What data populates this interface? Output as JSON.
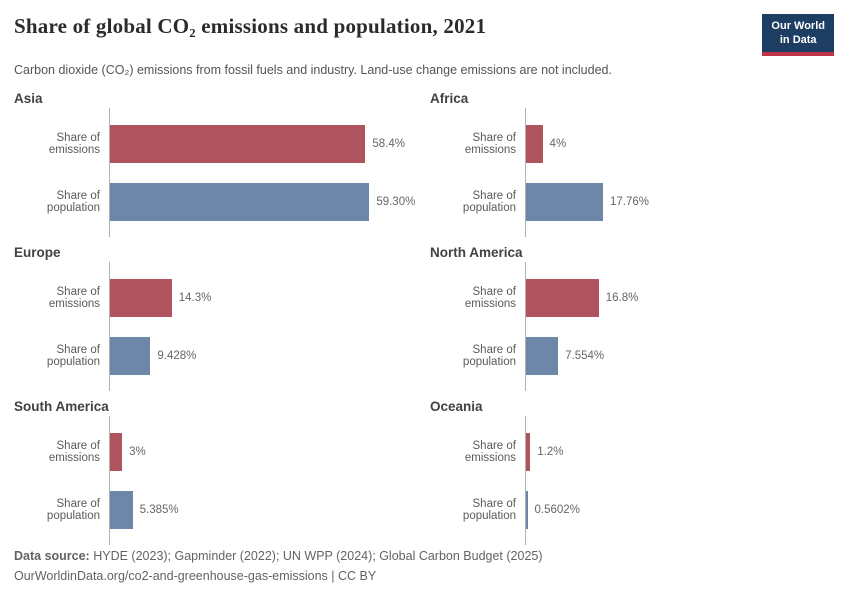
{
  "header": {
    "title": "Share of global CO₂ emissions and population, 2021",
    "subtitle": "Carbon dioxide (CO₂) emissions from fossil fuels and industry. Land-use change emissions are not included.",
    "logo": {
      "line1": "Our World",
      "line2": "in Data"
    }
  },
  "chart_data": {
    "type": "bar",
    "orientation": "horizontal",
    "unit": "%",
    "xlim": [
      0,
      68
    ],
    "grid": false,
    "legend": "none",
    "metrics": [
      "Share of emissions",
      "Share of population"
    ],
    "colors": {
      "emissions": "#b0545f",
      "population": "#6e87a9"
    },
    "facets": [
      {
        "name": "Asia",
        "emissions": 58.4,
        "emissions_label": "58.4%",
        "population": 59.3,
        "population_label": "59.30%"
      },
      {
        "name": "Africa",
        "emissions": 4,
        "emissions_label": "4%",
        "population": 17.76,
        "population_label": "17.76%"
      },
      {
        "name": "Europe",
        "emissions": 14.3,
        "emissions_label": "14.3%",
        "population": 9.428,
        "population_label": "9.428%"
      },
      {
        "name": "North America",
        "emissions": 16.8,
        "emissions_label": "16.8%",
        "population": 7.554,
        "population_label": "7.554%"
      },
      {
        "name": "South America",
        "emissions": 3,
        "emissions_label": "3%",
        "population": 5.385,
        "population_label": "5.385%"
      },
      {
        "name": "Oceania",
        "emissions": 1.2,
        "emissions_label": "1.2%",
        "population": 0.5602,
        "population_label": "0.5602%"
      }
    ]
  },
  "footer": {
    "source_label": "Data source:",
    "sources": "HYDE (2023); Gapminder (2022); UN WPP (2024); Global Carbon Budget (2025)",
    "link": "OurWorldinData.org/co2-and-greenhouse-gas-emissions",
    "separator": " | ",
    "license": "CC BY"
  }
}
